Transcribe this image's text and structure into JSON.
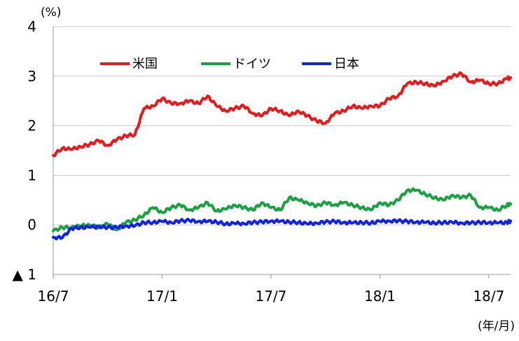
{
  "chart_data": {
    "type": "line",
    "y_unit": "(%)",
    "x_unit": "(年/月)",
    "ylim": [
      -1,
      4
    ],
    "y_ticks": [
      {
        "value": 4,
        "label": "4"
      },
      {
        "value": 3,
        "label": "3"
      },
      {
        "value": 2,
        "label": "2"
      },
      {
        "value": 1,
        "label": "1"
      },
      {
        "value": 0,
        "label": "0"
      },
      {
        "value": -1,
        "label": "▲ 1"
      }
    ],
    "x_ticks": [
      {
        "index": 0,
        "label": "16/7"
      },
      {
        "index": 6,
        "label": "17/1"
      },
      {
        "index": 12,
        "label": "17/7"
      },
      {
        "index": 18,
        "label": "18/1"
      },
      {
        "index": 24,
        "label": "18/7"
      }
    ],
    "x_count": 25.2,
    "grid": true,
    "legend_position": "top-left inside",
    "series": [
      {
        "name": "米国",
        "color": "#e8191c",
        "x": [
          0,
          0.5,
          1,
          1.5,
          2,
          2.5,
          3,
          3.5,
          4,
          4.5,
          5,
          5.5,
          6,
          6.5,
          7,
          7.5,
          8,
          8.5,
          9,
          9.5,
          10,
          10.5,
          11,
          11.5,
          12,
          12.5,
          13,
          13.5,
          14,
          14.5,
          15,
          15.5,
          16,
          16.5,
          17,
          17.5,
          18,
          18.5,
          19,
          19.5,
          20,
          20.5,
          21,
          21.5,
          22,
          22.5,
          23,
          23.5,
          24,
          24.5,
          25,
          25.2
        ],
        "values": [
          1.4,
          1.55,
          1.52,
          1.58,
          1.62,
          1.7,
          1.6,
          1.72,
          1.8,
          1.82,
          2.35,
          2.4,
          2.55,
          2.45,
          2.45,
          2.5,
          2.45,
          2.6,
          2.4,
          2.3,
          2.35,
          2.4,
          2.25,
          2.2,
          2.35,
          2.3,
          2.2,
          2.3,
          2.2,
          2.1,
          2.05,
          2.25,
          2.3,
          2.4,
          2.35,
          2.4,
          2.4,
          2.55,
          2.6,
          2.85,
          2.88,
          2.85,
          2.8,
          2.9,
          3.0,
          3.05,
          2.88,
          2.92,
          2.85,
          2.85,
          2.95,
          2.97
        ]
      },
      {
        "name": "ドイツ",
        "color": "#1aa142",
        "x": [
          0,
          0.5,
          1,
          1.5,
          2,
          2.5,
          3,
          3.5,
          4,
          4.5,
          5,
          5.5,
          6,
          6.5,
          7,
          7.5,
          8,
          8.5,
          9,
          9.5,
          10,
          10.5,
          11,
          11.5,
          12,
          12.5,
          13,
          13.5,
          14,
          14.5,
          15,
          15.5,
          16,
          16.5,
          17,
          17.5,
          18,
          18.5,
          19,
          19.5,
          20,
          20.5,
          21,
          21.5,
          22,
          22.5,
          23,
          23.5,
          24,
          24.5,
          25,
          25.2
        ],
        "values": [
          -0.12,
          -0.05,
          -0.05,
          -0.02,
          0.0,
          -0.05,
          0.02,
          -0.1,
          0.05,
          0.1,
          0.2,
          0.35,
          0.25,
          0.35,
          0.4,
          0.3,
          0.35,
          0.45,
          0.28,
          0.32,
          0.4,
          0.35,
          0.3,
          0.45,
          0.35,
          0.3,
          0.55,
          0.5,
          0.45,
          0.38,
          0.45,
          0.4,
          0.45,
          0.4,
          0.35,
          0.3,
          0.45,
          0.4,
          0.5,
          0.7,
          0.7,
          0.62,
          0.55,
          0.5,
          0.6,
          0.55,
          0.6,
          0.35,
          0.35,
          0.3,
          0.4,
          0.42
        ]
      },
      {
        "name": "日本",
        "color": "#0f23e6",
        "x": [
          0,
          0.5,
          1,
          1.5,
          2,
          2.5,
          3,
          3.5,
          4,
          4.5,
          5,
          5.5,
          6,
          6.5,
          7,
          7.5,
          8,
          8.5,
          9,
          9.5,
          10,
          10.5,
          11,
          11.5,
          12,
          12.5,
          13,
          13.5,
          14,
          14.5,
          15,
          15.5,
          16,
          16.5,
          17,
          17.5,
          18,
          18.5,
          19,
          19.5,
          20,
          20.5,
          21,
          21.5,
          22,
          22.5,
          23,
          23.5,
          24,
          24.5,
          25,
          25.2
        ],
        "values": [
          -0.25,
          -0.26,
          -0.07,
          -0.05,
          -0.05,
          -0.03,
          -0.05,
          -0.05,
          -0.02,
          -0.02,
          0.05,
          0.05,
          0.07,
          0.05,
          0.08,
          0.09,
          0.07,
          0.07,
          0.06,
          0.02,
          0.03,
          0.03,
          0.05,
          0.06,
          0.08,
          0.07,
          0.06,
          0.05,
          0.02,
          0.04,
          0.06,
          0.07,
          0.05,
          0.04,
          0.05,
          0.04,
          0.07,
          0.08,
          0.08,
          0.07,
          0.06,
          0.05,
          0.04,
          0.05,
          0.05,
          0.04,
          0.04,
          0.05,
          0.05,
          0.04,
          0.05,
          0.08
        ]
      }
    ]
  }
}
